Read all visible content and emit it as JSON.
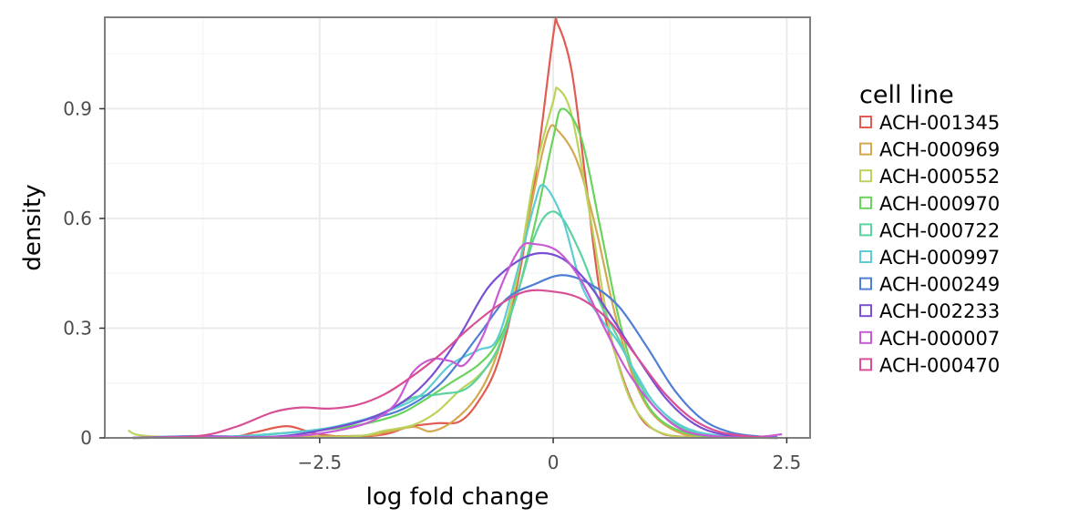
{
  "chart_data": {
    "type": "line",
    "xlabel": "log fold change",
    "ylabel": "density",
    "xlim": [
      -4.8,
      2.75
    ],
    "ylim": [
      0,
      1.15
    ],
    "x_ticks": [
      -2.5,
      0,
      2.5
    ],
    "x_tick_labels": [
      "−2.5",
      "0",
      "2.5"
    ],
    "y_ticks": [
      0,
      0.3,
      0.6,
      0.9
    ],
    "y_tick_labels": [
      "0",
      "0.3",
      "0.6",
      "0.9"
    ],
    "grid": true,
    "legend": {
      "title": "cell line",
      "position": "right"
    },
    "series": [
      {
        "name": "ACH-001345",
        "color": "#e15b52",
        "points": [
          [
            -4.5,
            0
          ],
          [
            -3.5,
            0.002
          ],
          [
            -3.2,
            0.015
          ],
          [
            -2.85,
            0.032
          ],
          [
            -2.55,
            0.012
          ],
          [
            -2.2,
            0.003
          ],
          [
            -1.8,
            0.01
          ],
          [
            -1.55,
            0.03
          ],
          [
            -1.25,
            0.04
          ],
          [
            -1.0,
            0.045
          ],
          [
            -0.8,
            0.1
          ],
          [
            -0.6,
            0.2
          ],
          [
            -0.4,
            0.4
          ],
          [
            -0.2,
            0.7
          ],
          [
            0.0,
            1.1
          ],
          [
            0.05,
            1.13
          ],
          [
            0.2,
            1.0
          ],
          [
            0.35,
            0.7
          ],
          [
            0.5,
            0.4
          ],
          [
            0.7,
            0.2
          ],
          [
            0.9,
            0.07
          ],
          [
            1.1,
            0.02
          ],
          [
            1.4,
            0.003
          ],
          [
            2.4,
            0
          ]
        ]
      },
      {
        "name": "ACH-000969",
        "color": "#d4a84f",
        "points": [
          [
            -4.5,
            0
          ],
          [
            -2.2,
            0.005
          ],
          [
            -1.8,
            0.015
          ],
          [
            -1.5,
            0.03
          ],
          [
            -1.3,
            0.018
          ],
          [
            -1.05,
            0.05
          ],
          [
            -0.8,
            0.12
          ],
          [
            -0.6,
            0.23
          ],
          [
            -0.4,
            0.42
          ],
          [
            -0.2,
            0.68
          ],
          [
            -0.05,
            0.84
          ],
          [
            0.05,
            0.84
          ],
          [
            0.25,
            0.76
          ],
          [
            0.45,
            0.58
          ],
          [
            0.65,
            0.35
          ],
          [
            0.85,
            0.17
          ],
          [
            1.05,
            0.07
          ],
          [
            1.3,
            0.02
          ],
          [
            1.6,
            0.003
          ],
          [
            2.4,
            0
          ]
        ]
      },
      {
        "name": "ACH-000552",
        "color": "#b9d35b",
        "points": [
          [
            -4.55,
            0.02
          ],
          [
            -4.35,
            0.005
          ],
          [
            -3.5,
            0
          ],
          [
            -2.2,
            0.003
          ],
          [
            -1.8,
            0.02
          ],
          [
            -1.5,
            0.035
          ],
          [
            -1.25,
            0.07
          ],
          [
            -1.0,
            0.13
          ],
          [
            -0.8,
            0.17
          ],
          [
            -0.6,
            0.24
          ],
          [
            -0.4,
            0.42
          ],
          [
            -0.2,
            0.72
          ],
          [
            0.0,
            0.92
          ],
          [
            0.05,
            0.955
          ],
          [
            0.2,
            0.88
          ],
          [
            0.4,
            0.6
          ],
          [
            0.6,
            0.3
          ],
          [
            0.8,
            0.12
          ],
          [
            1.0,
            0.04
          ],
          [
            1.2,
            0.01
          ],
          [
            1.5,
            0.001
          ],
          [
            2.4,
            0
          ]
        ]
      },
      {
        "name": "ACH-000970",
        "color": "#69d35b",
        "points": [
          [
            -4.5,
            0
          ],
          [
            -3.5,
            0.003
          ],
          [
            -2.8,
            0.015
          ],
          [
            -2.2,
            0.03
          ],
          [
            -1.7,
            0.06
          ],
          [
            -1.4,
            0.1
          ],
          [
            -1.1,
            0.15
          ],
          [
            -0.8,
            0.2
          ],
          [
            -0.6,
            0.26
          ],
          [
            -0.4,
            0.38
          ],
          [
            -0.2,
            0.58
          ],
          [
            0.0,
            0.82
          ],
          [
            0.1,
            0.9
          ],
          [
            0.3,
            0.82
          ],
          [
            0.5,
            0.58
          ],
          [
            0.7,
            0.33
          ],
          [
            0.9,
            0.15
          ],
          [
            1.1,
            0.06
          ],
          [
            1.4,
            0.015
          ],
          [
            1.8,
            0.002
          ],
          [
            2.4,
            0
          ]
        ]
      },
      {
        "name": "ACH-000722",
        "color": "#5bd3a0",
        "points": [
          [
            -4.5,
            0
          ],
          [
            -3.5,
            0.003
          ],
          [
            -2.8,
            0.015
          ],
          [
            -2.2,
            0.035
          ],
          [
            -1.8,
            0.07
          ],
          [
            -1.5,
            0.11
          ],
          [
            -1.2,
            0.12
          ],
          [
            -0.9,
            0.14
          ],
          [
            -0.6,
            0.24
          ],
          [
            -0.4,
            0.38
          ],
          [
            -0.2,
            0.55
          ],
          [
            -0.05,
            0.615
          ],
          [
            0.1,
            0.6
          ],
          [
            0.3,
            0.5
          ],
          [
            0.5,
            0.37
          ],
          [
            0.7,
            0.27
          ],
          [
            0.9,
            0.16
          ],
          [
            1.1,
            0.08
          ],
          [
            1.4,
            0.025
          ],
          [
            1.8,
            0.005
          ],
          [
            2.4,
            0
          ]
        ]
      },
      {
        "name": "ACH-000997",
        "color": "#5bcdd3",
        "points": [
          [
            -4.5,
            0
          ],
          [
            -3.5,
            0.003
          ],
          [
            -2.6,
            0.02
          ],
          [
            -2.1,
            0.045
          ],
          [
            -1.7,
            0.08
          ],
          [
            -1.4,
            0.12
          ],
          [
            -1.1,
            0.2
          ],
          [
            -0.8,
            0.24
          ],
          [
            -0.6,
            0.27
          ],
          [
            -0.4,
            0.44
          ],
          [
            -0.2,
            0.64
          ],
          [
            -0.1,
            0.69
          ],
          [
            0.1,
            0.6
          ],
          [
            0.3,
            0.42
          ],
          [
            0.5,
            0.33
          ],
          [
            0.7,
            0.26
          ],
          [
            0.9,
            0.17
          ],
          [
            1.1,
            0.09
          ],
          [
            1.4,
            0.03
          ],
          [
            1.8,
            0.005
          ],
          [
            2.4,
            0
          ]
        ]
      },
      {
        "name": "ACH-000249",
        "color": "#4f7fd4",
        "points": [
          [
            -4.5,
            0
          ],
          [
            -3.8,
            0.005
          ],
          [
            -3.0,
            0.003
          ],
          [
            -2.5,
            0.02
          ],
          [
            -2.0,
            0.05
          ],
          [
            -1.6,
            0.08
          ],
          [
            -1.2,
            0.15
          ],
          [
            -0.8,
            0.28
          ],
          [
            -0.5,
            0.38
          ],
          [
            -0.2,
            0.42
          ],
          [
            0.1,
            0.445
          ],
          [
            0.4,
            0.42
          ],
          [
            0.7,
            0.36
          ],
          [
            1.0,
            0.25
          ],
          [
            1.3,
            0.13
          ],
          [
            1.6,
            0.05
          ],
          [
            1.9,
            0.015
          ],
          [
            2.2,
            0.004
          ],
          [
            2.4,
            0.002
          ]
        ]
      },
      {
        "name": "ACH-002233",
        "color": "#7a4fd4",
        "points": [
          [
            -4.5,
            0
          ],
          [
            -3.8,
            0.003
          ],
          [
            -3.0,
            0.003
          ],
          [
            -2.5,
            0.02
          ],
          [
            -2.0,
            0.05
          ],
          [
            -1.6,
            0.1
          ],
          [
            -1.3,
            0.17
          ],
          [
            -1.0,
            0.28
          ],
          [
            -0.7,
            0.41
          ],
          [
            -0.4,
            0.48
          ],
          [
            -0.15,
            0.505
          ],
          [
            0.1,
            0.49
          ],
          [
            0.35,
            0.43
          ],
          [
            0.6,
            0.34
          ],
          [
            0.9,
            0.22
          ],
          [
            1.2,
            0.11
          ],
          [
            1.5,
            0.04
          ],
          [
            1.8,
            0.01
          ],
          [
            2.2,
            0.002
          ],
          [
            2.4,
            0
          ]
        ]
      },
      {
        "name": "ACH-000007",
        "color": "#c85bd3",
        "points": [
          [
            -4.5,
            0
          ],
          [
            -3.8,
            0.003
          ],
          [
            -3.0,
            0.002
          ],
          [
            -2.5,
            0.012
          ],
          [
            -2.0,
            0.04
          ],
          [
            -1.7,
            0.09
          ],
          [
            -1.5,
            0.18
          ],
          [
            -1.3,
            0.215
          ],
          [
            -1.1,
            0.21
          ],
          [
            -0.95,
            0.2
          ],
          [
            -0.75,
            0.28
          ],
          [
            -0.55,
            0.42
          ],
          [
            -0.35,
            0.52
          ],
          [
            -0.2,
            0.53
          ],
          [
            0.05,
            0.51
          ],
          [
            0.3,
            0.43
          ],
          [
            0.55,
            0.3
          ],
          [
            0.8,
            0.18
          ],
          [
            1.1,
            0.08
          ],
          [
            1.4,
            0.02
          ],
          [
            1.8,
            0.003
          ],
          [
            2.2,
            0.003
          ],
          [
            2.45,
            0.01
          ]
        ]
      },
      {
        "name": "ACH-000470",
        "color": "#d84f96",
        "points": [
          [
            -4.5,
            0
          ],
          [
            -3.8,
            0.005
          ],
          [
            -3.4,
            0.03
          ],
          [
            -3.0,
            0.07
          ],
          [
            -2.7,
            0.083
          ],
          [
            -2.4,
            0.08
          ],
          [
            -2.1,
            0.09
          ],
          [
            -1.8,
            0.12
          ],
          [
            -1.5,
            0.17
          ],
          [
            -1.2,
            0.23
          ],
          [
            -0.9,
            0.3
          ],
          [
            -0.6,
            0.36
          ],
          [
            -0.3,
            0.4
          ],
          [
            0.0,
            0.4
          ],
          [
            0.3,
            0.38
          ],
          [
            0.6,
            0.32
          ],
          [
            0.9,
            0.22
          ],
          [
            1.2,
            0.12
          ],
          [
            1.5,
            0.05
          ],
          [
            1.8,
            0.015
          ],
          [
            2.2,
            0.002
          ],
          [
            2.4,
            0
          ]
        ]
      }
    ]
  }
}
